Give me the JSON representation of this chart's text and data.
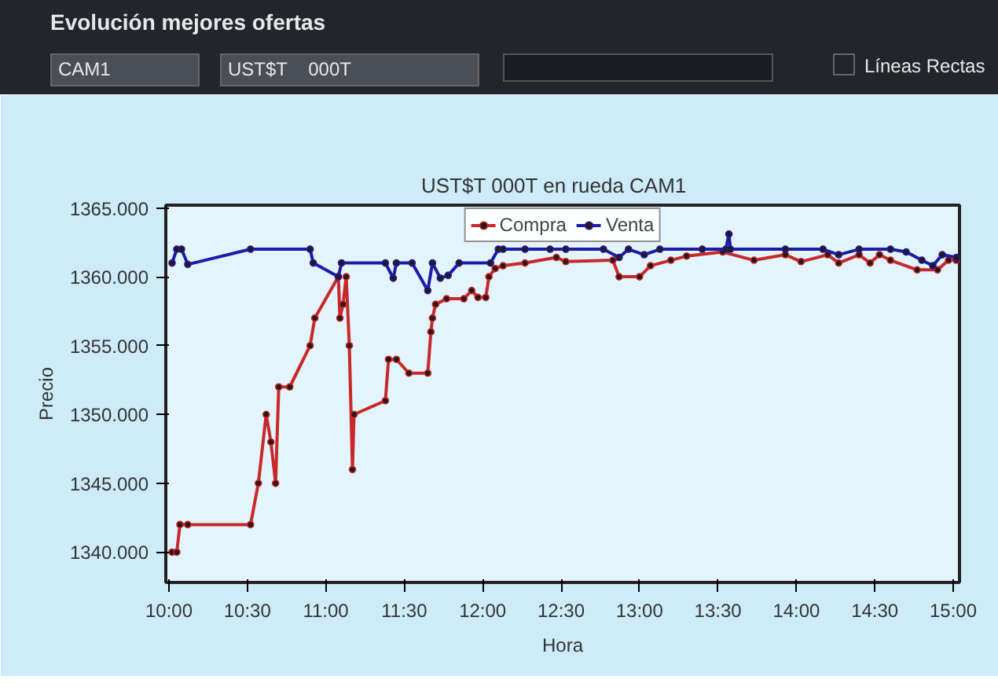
{
  "chart_data": {
    "type": "line",
    "title": "UST$T    000T en rueda CAM1",
    "xlabel": "Hora",
    "ylabel": "Precio",
    "annotations": [
      "Evolución mejores ofertas",
      "CAM1",
      "UST$T    000T",
      "Líneas Rectas"
    ],
    "xlim": [
      9.98,
      15.04
    ],
    "ylim": [
      1337.8,
      1365.2
    ],
    "xticks": [
      {
        "value": 10,
        "label": "10:00"
      },
      {
        "value": 10.5,
        "label": "10:30"
      },
      {
        "value": 11,
        "label": "11:00"
      },
      {
        "value": 11.5,
        "label": "11:30"
      },
      {
        "value": 12,
        "label": "12:00"
      },
      {
        "value": 12.5,
        "label": "12:30"
      },
      {
        "value": 13,
        "label": "13:00"
      },
      {
        "value": 13.5,
        "label": "13:30"
      },
      {
        "value": 14,
        "label": "14:00"
      },
      {
        "value": 14.5,
        "label": "14:30"
      },
      {
        "value": 15,
        "label": "15:00"
      }
    ],
    "yticks": [
      {
        "value": 1340,
        "label": "1340.000"
      },
      {
        "value": 1345,
        "label": "1345.000"
      },
      {
        "value": 1350,
        "label": "1350.000"
      },
      {
        "value": 1355,
        "label": "1355.000"
      },
      {
        "value": 1360,
        "label": "1360.000"
      },
      {
        "value": 1365,
        "label": "1365.000"
      }
    ],
    "grid": false,
    "legend": "top",
    "marker": "circle",
    "line_style": "solid",
    "series": [
      {
        "name": "Compra",
        "color": "#c8282a",
        "x": [
          10.02,
          10.05,
          10.07,
          10.12,
          10.52,
          10.57,
          10.62,
          10.65,
          10.68,
          10.7,
          10.77,
          10.9,
          10.93,
          11.08,
          11.09,
          11.11,
          11.13,
          11.15,
          11.17,
          11.18,
          11.38,
          11.4,
          11.45,
          11.53,
          11.65,
          11.67,
          11.68,
          11.7,
          11.77,
          11.88,
          11.93,
          11.97,
          12.02,
          12.04,
          12.08,
          12.13,
          12.27,
          12.47,
          12.53,
          12.83,
          12.87,
          13.0,
          13.07,
          13.2,
          13.3,
          13.53,
          13.73,
          13.93,
          14.03,
          14.2,
          14.27,
          14.4,
          14.47,
          14.53,
          14.6,
          14.77,
          14.9,
          14.97,
          15.02
        ],
        "values": [
          1340,
          1340,
          1342,
          1342,
          1342,
          1345,
          1350,
          1348,
          1345,
          1352,
          1352,
          1355,
          1357,
          1360,
          1357,
          1358,
          1360,
          1355,
          1346,
          1350,
          1351,
          1354,
          1354,
          1353,
          1353,
          1356,
          1357,
          1358,
          1358.4,
          1358.4,
          1359,
          1358.5,
          1358.5,
          1360,
          1360.6,
          1360.8,
          1361,
          1361.4,
          1361.1,
          1361.2,
          1360,
          1360,
          1360.8,
          1361.2,
          1361.5,
          1361.8,
          1361.2,
          1361.6,
          1361.1,
          1361.6,
          1361,
          1361.6,
          1361,
          1361.6,
          1361.2,
          1360.5,
          1360.5,
          1361.2,
          1361.2
        ]
      },
      {
        "name": "Venta",
        "color": "#1c1ca8",
        "x": [
          10.02,
          10.05,
          10.08,
          10.12,
          10.52,
          10.9,
          10.92,
          11.08,
          11.1,
          11.38,
          11.43,
          11.45,
          11.55,
          11.65,
          11.68,
          11.73,
          11.78,
          11.85,
          12.05,
          12.1,
          12.13,
          12.27,
          12.43,
          12.53,
          12.77,
          12.87,
          12.93,
          13.03,
          13.13,
          13.4,
          13.55,
          13.57,
          13.58,
          13.93,
          14.17,
          14.27,
          14.4,
          14.6,
          14.7,
          14.8,
          14.87,
          14.93,
          15.02
        ],
        "values": [
          1361,
          1362,
          1362,
          1360.9,
          1362,
          1362,
          1361,
          1360,
          1361,
          1361,
          1359.9,
          1361,
          1361,
          1359,
          1361,
          1359.9,
          1360.1,
          1361,
          1361,
          1362,
          1362,
          1362,
          1362,
          1362,
          1362,
          1361.4,
          1362,
          1361.6,
          1362,
          1362,
          1362,
          1363.1,
          1362,
          1362,
          1362,
          1361.6,
          1362,
          1362,
          1361.8,
          1361.2,
          1360.8,
          1361.6,
          1361.4
        ]
      }
    ]
  }
}
